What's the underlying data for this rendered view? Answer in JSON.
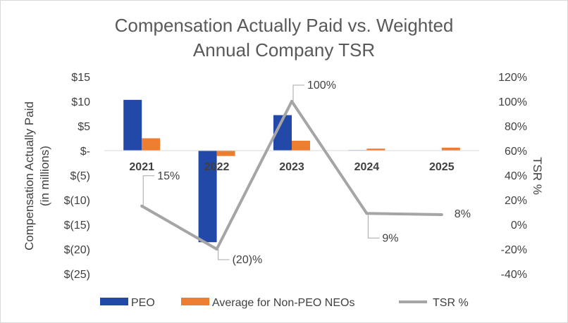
{
  "chart_data": {
    "type": "bar",
    "title_lines": [
      "Compensation Actually Paid vs. Weighted",
      "Annual Company TSR"
    ],
    "categories": [
      "2021",
      "2022",
      "2023",
      "2024",
      "2025"
    ],
    "ylabel_lines": [
      "Compensation Actually Paid",
      "(in millions)"
    ],
    "y2label": "TSR %",
    "ylim": [
      -25,
      15
    ],
    "y_ticks": [
      15,
      10,
      5,
      0,
      -5,
      -10,
      -15,
      -20,
      -25
    ],
    "y_tick_labels": [
      "$15",
      "$10",
      "$5",
      "$-",
      "$(5)",
      "$(10)",
      "$(15)",
      "$(20)",
      "$(25)"
    ],
    "y2lim": [
      -40,
      120
    ],
    "y2_ticks": [
      120,
      100,
      80,
      60,
      40,
      20,
      0,
      -20,
      -40
    ],
    "y2_tick_labels": [
      "120%",
      "100%",
      "80%",
      "60%",
      "40%",
      "20%",
      "0%",
      "-20%",
      "-40%"
    ],
    "series": [
      {
        "name": "PEO",
        "type": "bar",
        "axis": "left",
        "color": "#2349a8",
        "values": [
          10.3,
          -18.6,
          7.2,
          0.1,
          0.0
        ]
      },
      {
        "name": "Average for Non-PEO NEOs",
        "type": "bar",
        "axis": "left",
        "color": "#ed7d31",
        "values": [
          2.5,
          -1.1,
          2.0,
          0.4,
          0.6
        ]
      },
      {
        "name": "TSR %",
        "type": "line",
        "axis": "right",
        "color": "#a5a5a5",
        "values": [
          15,
          -20,
          100,
          9,
          8
        ],
        "data_labels": [
          "15%",
          "(20)%",
          "100%",
          "9%",
          "8%"
        ]
      }
    ],
    "legend_position": "bottom",
    "grid": false
  }
}
